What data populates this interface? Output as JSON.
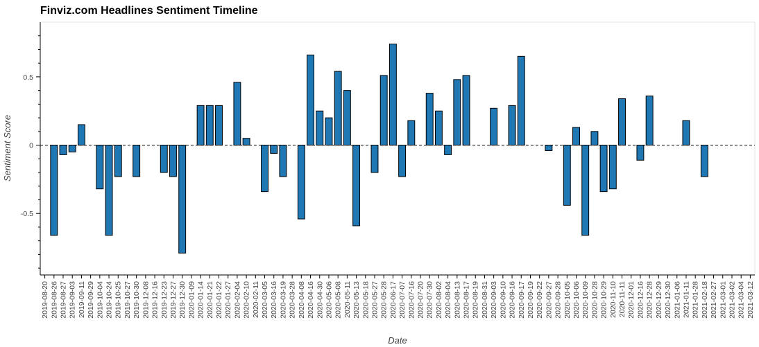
{
  "chart_data": {
    "type": "bar",
    "title": "Finviz.com Headlines Sentiment Timeline",
    "xlabel": "Date",
    "ylabel": "Sentiment Score",
    "ylim": [
      -0.95,
      0.9
    ],
    "yticks": [
      -0.5,
      0,
      0.5
    ],
    "ytick_labels": [
      "-0.5",
      "0",
      "0.5"
    ],
    "zero_line": "dashed",
    "bar_color": "#1f77b4",
    "categories": [
      "2019-08-20",
      "2019-08-26",
      "2019-08-27",
      "2019-09-03",
      "2019-09-11",
      "2019-09-29",
      "2019-10-04",
      "2019-10-24",
      "2019-10-25",
      "2019-10-27",
      "2019-10-30",
      "2019-12-08",
      "2019-12-16",
      "2019-12-23",
      "2019-12-27",
      "2019-12-30",
      "2020-01-09",
      "2020-01-14",
      "2020-01-21",
      "2020-01-22",
      "2020-01-27",
      "2020-02-04",
      "2020-02-10",
      "2020-02-11",
      "2020-03-05",
      "2020-03-16",
      "2020-03-19",
      "2020-03-28",
      "2020-04-08",
      "2020-04-16",
      "2020-04-30",
      "2020-05-06",
      "2020-05-08",
      "2020-05-11",
      "2020-05-13",
      "2020-05-18",
      "2020-05-27",
      "2020-05-28",
      "2020-06-17",
      "2020-07-07",
      "2020-07-16",
      "2020-07-20",
      "2020-07-30",
      "2020-08-02",
      "2020-08-04",
      "2020-08-13",
      "2020-08-17",
      "2020-08-19",
      "2020-08-31",
      "2020-09-03",
      "2020-09-10",
      "2020-09-16",
      "2020-09-17",
      "2020-09-19",
      "2020-09-22",
      "2020-09-27",
      "2020-09-28",
      "2020-10-05",
      "2020-10-06",
      "2020-10-09",
      "2020-10-28",
      "2020-10-29",
      "2020-11-10",
      "2020-11-11",
      "2020-12-01",
      "2020-12-16",
      "2020-12-28",
      "2020-12-29",
      "2020-12-30",
      "2021-01-06",
      "2021-01-11",
      "2021-01-28",
      "2021-02-18",
      "2021-02-27",
      "2021-03-01",
      "2021-03-02",
      "2021-03-04",
      "2021-03-12"
    ],
    "values": [
      0,
      -0.66,
      -0.07,
      -0.05,
      0.15,
      0,
      -0.32,
      -0.66,
      -0.23,
      0,
      -0.23,
      0,
      0,
      -0.2,
      -0.23,
      -0.79,
      0,
      0.29,
      0.29,
      0.29,
      0,
      0.46,
      0.05,
      0,
      -0.34,
      -0.06,
      -0.23,
      0,
      -0.54,
      0.66,
      0.25,
      0.2,
      0.54,
      0.4,
      -0.59,
      0,
      -0.2,
      0.51,
      0.74,
      -0.23,
      0.18,
      0,
      0.38,
      0.25,
      -0.07,
      0.48,
      0.51,
      0,
      0,
      0.27,
      0,
      0.29,
      0.65,
      0,
      0,
      -0.04,
      0,
      -0.44,
      0.13,
      -0.66,
      0.1,
      -0.34,
      -0.32,
      0.34,
      0,
      -0.11,
      0.36,
      0,
      0,
      0,
      0.18,
      0,
      -0.23,
      0,
      0,
      0,
      0,
      0
    ]
  }
}
